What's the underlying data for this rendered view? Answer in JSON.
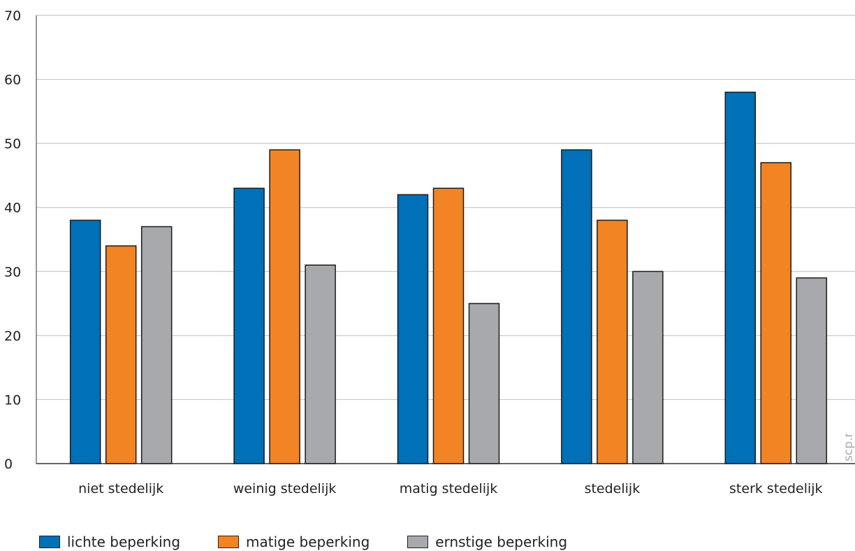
{
  "chart_data": {
    "type": "bar",
    "categories": [
      "niet stedelijk",
      "weinig stedelijk",
      "matig stedelijk",
      "stedelijk",
      "sterk stedelijk"
    ],
    "series": [
      {
        "name": "lichte beperking",
        "color": "#0070b8",
        "values": [
          38,
          43,
          42,
          49,
          58
        ]
      },
      {
        "name": "matige beperking",
        "color": "#f28423",
        "values": [
          34,
          49,
          43,
          38,
          47
        ]
      },
      {
        "name": "ernstige beperking",
        "color": "#a8a9ad",
        "values": [
          37,
          31,
          25,
          30,
          29
        ]
      }
    ],
    "y_ticks": [
      "0",
      "10",
      "20",
      "30",
      "40",
      "50",
      "60",
      "70"
    ],
    "ylim": [
      0,
      70
    ],
    "grid": true,
    "legend_position": "bottom-left"
  },
  "watermark": "scp.nl"
}
